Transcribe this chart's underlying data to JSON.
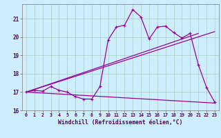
{
  "xlabel": "Windchill (Refroidissement éolien,°C)",
  "bg_color": "#cceeff",
  "grid_color": "#aaccbb",
  "line_color": "#990099",
  "xlim": [
    -0.5,
    23.5
  ],
  "ylim": [
    16.0,
    21.8
  ],
  "xticks": [
    0,
    1,
    2,
    3,
    4,
    5,
    6,
    7,
    8,
    9,
    10,
    11,
    12,
    13,
    14,
    15,
    16,
    17,
    18,
    19,
    20,
    21,
    22,
    23
  ],
  "yticks": [
    16,
    17,
    18,
    19,
    20,
    21
  ],
  "main_x": [
    0,
    1,
    2,
    3,
    4,
    5,
    6,
    7,
    8,
    9,
    10,
    11,
    12,
    13,
    14,
    15,
    16,
    17,
    18,
    19,
    20,
    21,
    22,
    23
  ],
  "main_y": [
    17.0,
    17.1,
    17.05,
    17.3,
    17.1,
    17.0,
    16.75,
    16.62,
    16.62,
    17.3,
    19.85,
    20.55,
    20.65,
    21.5,
    21.1,
    19.9,
    20.55,
    20.6,
    20.25,
    19.95,
    20.2,
    18.5,
    17.25,
    16.45
  ],
  "trend1_x": [
    0,
    21
  ],
  "trend1_y": [
    17.0,
    20.2
  ],
  "trend2_x": [
    0,
    23
  ],
  "trend2_y": [
    17.0,
    20.3
  ],
  "trend3_x": [
    0,
    23
  ],
  "trend3_y": [
    17.0,
    16.4
  ]
}
